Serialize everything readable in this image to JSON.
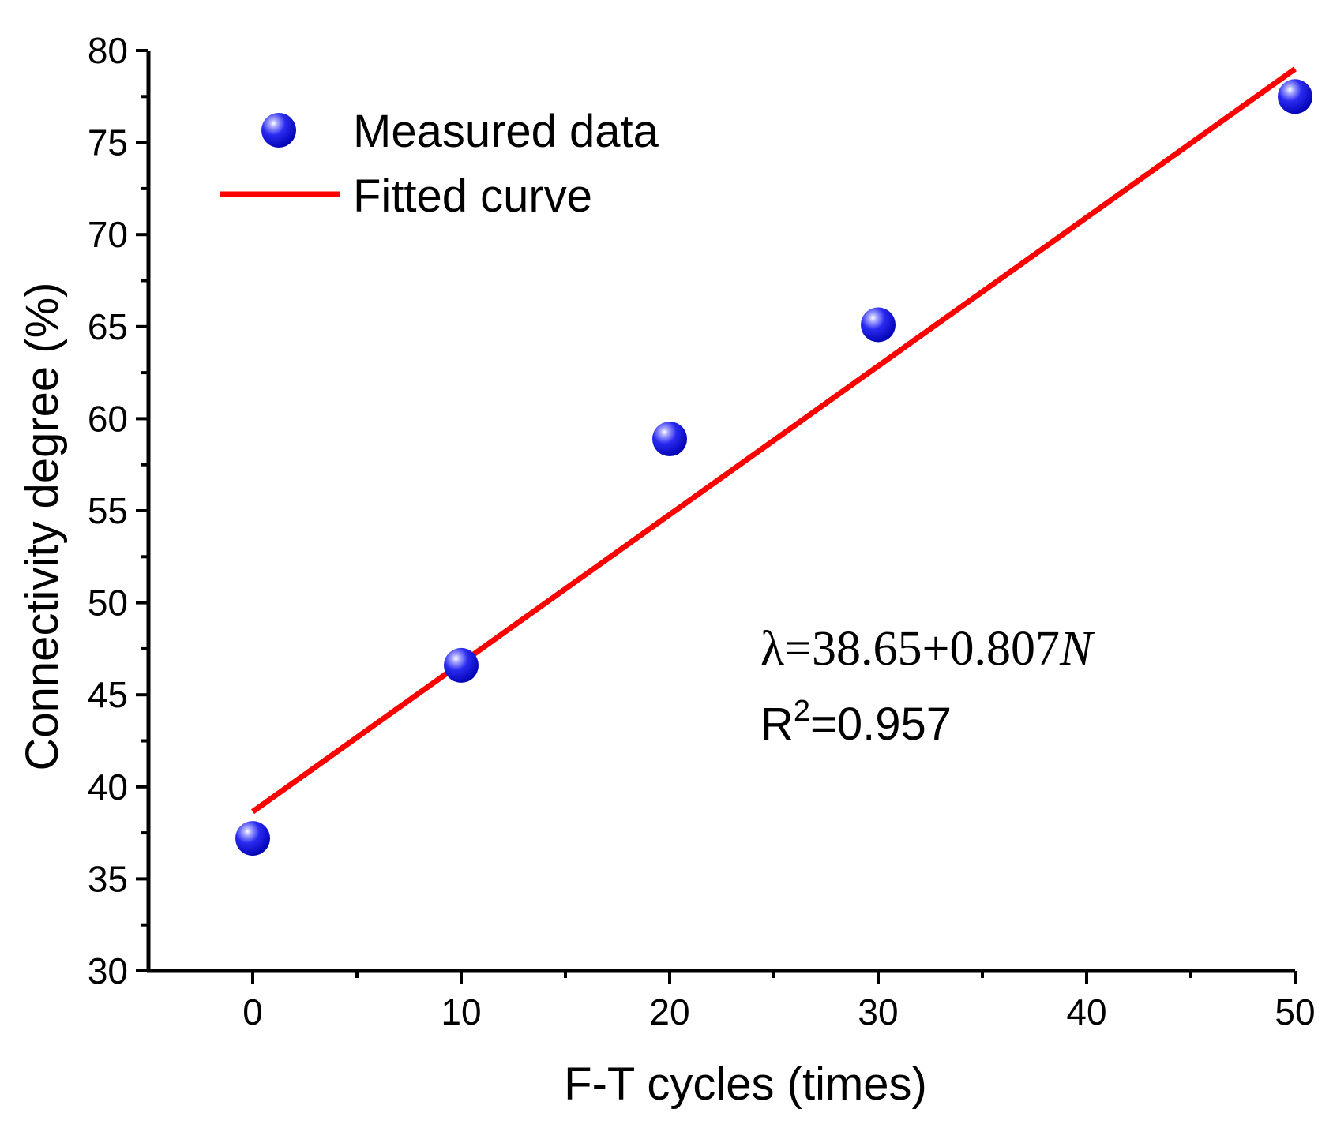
{
  "chart_data": {
    "type": "scatter",
    "xlabel": "F-T cycles (times)",
    "ylabel": "Connectivity degree (%)",
    "xlim": [
      -5,
      50
    ],
    "ylim": [
      30,
      80
    ],
    "xticks": [
      0,
      10,
      20,
      30,
      40,
      50
    ],
    "yticks": [
      30,
      35,
      40,
      45,
      50,
      55,
      60,
      65,
      70,
      75,
      80
    ],
    "series": [
      {
        "name": "Measured data",
        "kind": "scatter",
        "color": "#1010e0",
        "x": [
          0,
          10,
          20,
          30,
          50
        ],
        "y": [
          37.2,
          46.6,
          58.9,
          65.1,
          77.5
        ]
      },
      {
        "name": "Fitted curve",
        "kind": "line",
        "color": "#ff0000",
        "intercept": 38.65,
        "slope": 0.807,
        "x_range": [
          0,
          50
        ]
      }
    ],
    "legend": {
      "position": "top-left",
      "entries": [
        "Measured data",
        "Fitted curve"
      ]
    },
    "annotations": {
      "equation": "λ=38.65+0.807",
      "equation_var": "N",
      "r2_label": "R",
      "r2_sup": "2",
      "r2_value": "=0.957"
    }
  }
}
